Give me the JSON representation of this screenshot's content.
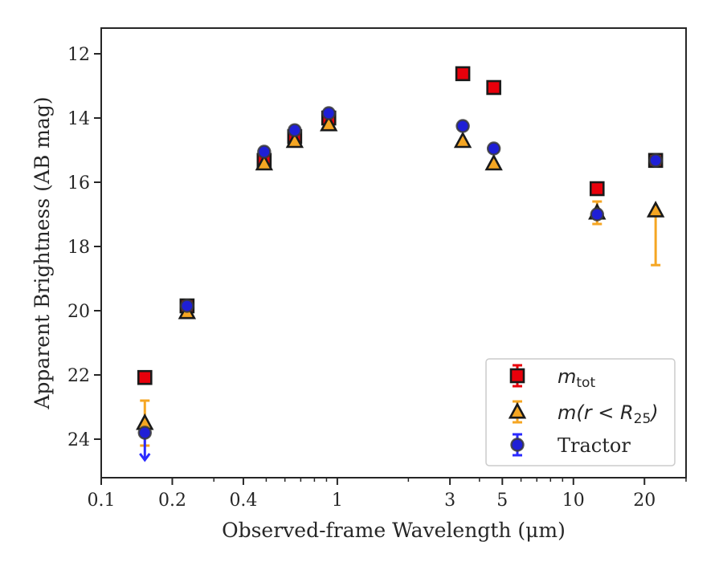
{
  "chart_data": {
    "type": "scatter",
    "xlabel": "Observed-frame Wavelength (μm)",
    "ylabel": "Apparent Brightness (AB mag)",
    "xscale": "log",
    "xlim": [
      0.1,
      30
    ],
    "ylim": [
      25.2,
      11.2
    ],
    "y_inverted": true,
    "grid": false,
    "legend_position": "lower-right",
    "x_ticks": [
      {
        "value": 0.1,
        "label": "0.1"
      },
      {
        "value": 0.2,
        "label": "0.2"
      },
      {
        "value": 0.4,
        "label": "0.4"
      },
      {
        "value": 1,
        "label": "1"
      },
      {
        "value": 3,
        "label": "3"
      },
      {
        "value": 5,
        "label": "5"
      },
      {
        "value": 10,
        "label": "10"
      },
      {
        "value": 20,
        "label": "20"
      }
    ],
    "y_ticks": [
      12,
      14,
      16,
      18,
      20,
      22,
      24
    ],
    "series": [
      {
        "key": "mtot",
        "legend_parts": {
          "main": "m",
          "sub": "tot",
          "rest": ""
        },
        "marker": "square",
        "color": "#e8000b",
        "error_color": "#e8000b",
        "points": [
          {
            "x": 0.153,
            "y": 22.08
          },
          {
            "x": 0.231,
            "y": 19.85
          },
          {
            "x": 0.49,
            "y": 15.32,
            "err": 0.15
          },
          {
            "x": 0.66,
            "y": 14.58,
            "err": 0.15
          },
          {
            "x": 0.92,
            "y": 14.0,
            "err": 0.15
          },
          {
            "x": 3.4,
            "y": 12.62
          },
          {
            "x": 4.6,
            "y": 13.05
          },
          {
            "x": 12.6,
            "y": 16.2
          },
          {
            "x": 22.3,
            "y": 15.32
          }
        ]
      },
      {
        "key": "mr25",
        "legend_parts": {
          "main": "m",
          "sub": "25",
          "rest_before_sub": "(r < R",
          "rest": ")"
        },
        "marker": "triangle",
        "color": "#f5a623",
        "error_color": "#f5a623",
        "points": [
          {
            "x": 0.153,
            "y": 23.5,
            "err": 0.7
          },
          {
            "x": 0.231,
            "y": 20.05
          },
          {
            "x": 0.49,
            "y": 15.42
          },
          {
            "x": 0.66,
            "y": 14.72
          },
          {
            "x": 0.92,
            "y": 14.2
          },
          {
            "x": 3.4,
            "y": 14.72
          },
          {
            "x": 4.6,
            "y": 15.42
          },
          {
            "x": 12.6,
            "y": 16.95,
            "err": 0.35
          },
          {
            "x": 22.3,
            "y": 16.88,
            "errlow": 1.7,
            "errhigh": 0
          }
        ]
      },
      {
        "key": "tractor",
        "legend_label": "Tractor",
        "marker": "circle",
        "color": "#1f1fd6",
        "error_color": "#2a2aff",
        "points": [
          {
            "x": 0.153,
            "y": 23.8,
            "upper_limit": true
          },
          {
            "x": 0.231,
            "y": 19.85
          },
          {
            "x": 0.49,
            "y": 15.05
          },
          {
            "x": 0.66,
            "y": 14.38
          },
          {
            "x": 0.92,
            "y": 13.85
          },
          {
            "x": 3.4,
            "y": 14.25
          },
          {
            "x": 4.6,
            "y": 14.95
          },
          {
            "x": 12.6,
            "y": 17.0
          },
          {
            "x": 22.3,
            "y": 15.32
          }
        ]
      }
    ]
  }
}
